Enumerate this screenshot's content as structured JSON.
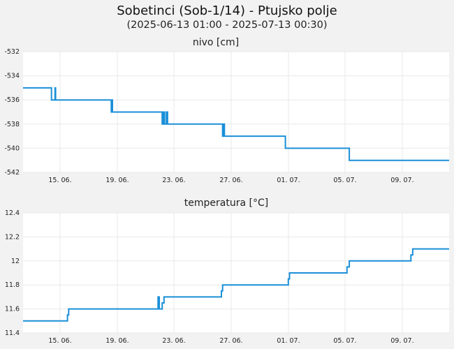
{
  "title": "Sobetinci (Sob-1/14) - Ptujsko polje",
  "subtitle": "(2025-06-13 01:00 - 2025-07-13 00:30)",
  "colors": {
    "series": "#1a8fd8",
    "background": "#f2f2f2",
    "plot": "#ffffff"
  },
  "chart_data": [
    {
      "type": "line",
      "title": "nivo [cm]",
      "x_range": [
        "2025-06-13 01:00",
        "2025-07-13 00:30"
      ],
      "ylim": [
        -542,
        -532
      ],
      "yticks": [
        "-532",
        "-534",
        "-536",
        "-538",
        "-540",
        "-542"
      ],
      "xticks": [
        "15. 06.",
        "19. 06.",
        "23. 06.",
        "27. 06.",
        "01. 07.",
        "05. 07.",
        "09. 07."
      ],
      "grid": true,
      "series": [
        {
          "x": [
            "2025-06-13 01:00",
            "2025-06-15 01:00",
            "2025-06-15 01:00",
            "2025-06-15 07:00",
            "2025-06-15 07:00",
            "2025-06-15 08:00",
            "2025-06-15 08:00",
            "2025-06-15 10:00",
            "2025-06-15 10:00",
            "2025-06-19 06:00",
            "2025-06-19 06:00",
            "2025-06-19 07:00",
            "2025-06-19 07:00",
            "2025-06-19 08:00",
            "2025-06-19 08:00",
            "2025-06-22 20:00",
            "2025-06-22 20:00",
            "2025-06-22 22:00",
            "2025-06-22 22:00",
            "2025-06-23 00:00",
            "2025-06-23 00:00",
            "2025-06-23 03:00",
            "2025-06-23 03:00",
            "2025-06-23 05:00",
            "2025-06-23 05:00",
            "2025-06-27 02:00",
            "2025-06-27 02:00",
            "2025-06-27 03:00",
            "2025-06-27 03:00",
            "2025-06-27 05:00",
            "2025-06-27 05:00",
            "2025-06-27 07:00",
            "2025-06-27 07:00",
            "2025-07-01 12:00",
            "2025-07-01 12:00",
            "2025-07-06 00:00",
            "2025-07-06 00:00",
            "2025-07-13 00:30"
          ],
          "y": [
            -535,
            -535,
            -536,
            -536,
            -535,
            -535,
            -536,
            -536,
            -536,
            -536,
            -537,
            -537,
            -536,
            -536,
            -537,
            -537,
            -538,
            -538,
            -537,
            -537,
            -538,
            -538,
            -537,
            -537,
            -538,
            -538,
            -539,
            -539,
            -538,
            -538,
            -539,
            -539,
            -539,
            -539,
            -540,
            -540,
            -541,
            -541
          ]
        }
      ]
    },
    {
      "type": "line",
      "title": "temperatura [°C]",
      "x_range": [
        "2025-06-13 01:00",
        "2025-07-13 00:30"
      ],
      "ylim": [
        11.4,
        12.4
      ],
      "yticks": [
        "12.4",
        "12.2",
        "12",
        "11.8",
        "11.6",
        "11.4"
      ],
      "xticks": [
        "15. 06.",
        "19. 06.",
        "23. 06.",
        "27. 06.",
        "01. 07.",
        "05. 07.",
        "09. 07."
      ],
      "grid": true,
      "series": [
        {
          "x": [
            "2025-06-13 01:00",
            "2025-06-16 04:00",
            "2025-06-16 04:00",
            "2025-06-16 06:00",
            "2025-06-16 06:00",
            "2025-06-22 13:00",
            "2025-06-22 13:00",
            "2025-06-22 15:00",
            "2025-06-22 15:00",
            "2025-06-22 20:00",
            "2025-06-22 20:00",
            "2025-06-22 23:00",
            "2025-06-22 23:00",
            "2025-06-27 00:00",
            "2025-06-27 00:00",
            "2025-06-27 02:00",
            "2025-06-27 02:00",
            "2025-07-01 17:00",
            "2025-07-01 17:00",
            "2025-07-01 19:00",
            "2025-07-01 19:00",
            "2025-07-01 21:00",
            "2025-07-01 21:00",
            "2025-07-05 20:00",
            "2025-07-05 20:00",
            "2025-07-06 00:00",
            "2025-07-06 00:00",
            "2025-07-10 08:00",
            "2025-07-10 08:00",
            "2025-07-10 11:00",
            "2025-07-10 11:00",
            "2025-07-13 00:30"
          ],
          "y": [
            11.5,
            11.5,
            11.55,
            11.55,
            11.6,
            11.6,
            11.7,
            11.7,
            11.6,
            11.6,
            11.65,
            11.65,
            11.7,
            11.7,
            11.75,
            11.75,
            11.8,
            11.8,
            11.85,
            11.85,
            11.9,
            11.9,
            11.9,
            11.9,
            11.95,
            11.95,
            12.0,
            12.0,
            12.05,
            12.05,
            12.1,
            12.1
          ]
        }
      ]
    }
  ]
}
